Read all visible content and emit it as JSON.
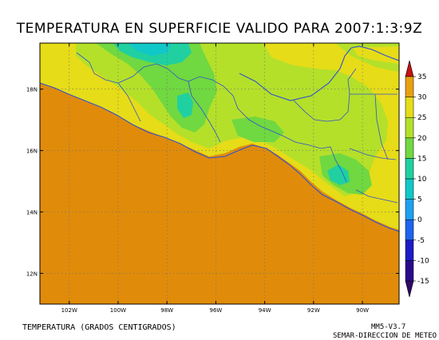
{
  "title": "TEMPERATURA EN SUPERFICIE VALIDO PARA 2007:1:3:9Z",
  "variable_label": "TEMPERATURA (GRADOS CENTIGRADOS)",
  "model_label": "MM5-V3.7",
  "agency_label": "SEMAR-DIRECCION DE METEO",
  "map": {
    "lon_range": [
      -103.2,
      -88.5
    ],
    "lat_range": [
      11.0,
      19.5
    ],
    "lat_ticks": [
      {
        "value": 18,
        "label": "18N"
      },
      {
        "value": 16,
        "label": "16N"
      },
      {
        "value": 14,
        "label": "14N"
      },
      {
        "value": 12,
        "label": "12N"
      }
    ],
    "lon_ticks": [
      {
        "value": -102,
        "label": "102W"
      },
      {
        "value": -100,
        "label": "100W"
      },
      {
        "value": -98,
        "label": "98W"
      },
      {
        "value": -96,
        "label": "96W"
      },
      {
        "value": -94,
        "label": "94W"
      },
      {
        "value": -92,
        "label": "92W"
      },
      {
        "value": -90,
        "label": "90W"
      }
    ],
    "grid": true,
    "coast_color": "#3050d0"
  },
  "colorbar": {
    "levels": [
      {
        "value": -15,
        "label": "-15",
        "color": "#2a0a8c"
      },
      {
        "value": -10,
        "label": "-10",
        "color": "#1c1cc8"
      },
      {
        "value": -5,
        "label": "-5",
        "color": "#1e64f0"
      },
      {
        "value": 0,
        "label": "0",
        "color": "#1ea0f0"
      },
      {
        "value": 5,
        "label": "5",
        "color": "#10c8c8"
      },
      {
        "value": 10,
        "label": "10",
        "color": "#20d0a0"
      },
      {
        "value": 15,
        "label": "15",
        "color": "#70d840"
      },
      {
        "value": 20,
        "label": "20",
        "color": "#b4e02a"
      },
      {
        "value": 25,
        "label": "25",
        "color": "#e6dc18"
      },
      {
        "value": 30,
        "label": "30",
        "color": "#e8a010"
      },
      {
        "value": 35,
        "label": "35",
        "color": "#e02a10"
      }
    ],
    "extend_low_color": "#300868",
    "extend_high_color": "#c81010"
  },
  "colors": {
    "ocean": "#e08c0a",
    "land_warm": "#e6dc18",
    "land_mild": "#b4e02a",
    "land_cool": "#70d840",
    "land_cold": "#20d0a0",
    "land_coldest": "#10c8c8"
  }
}
